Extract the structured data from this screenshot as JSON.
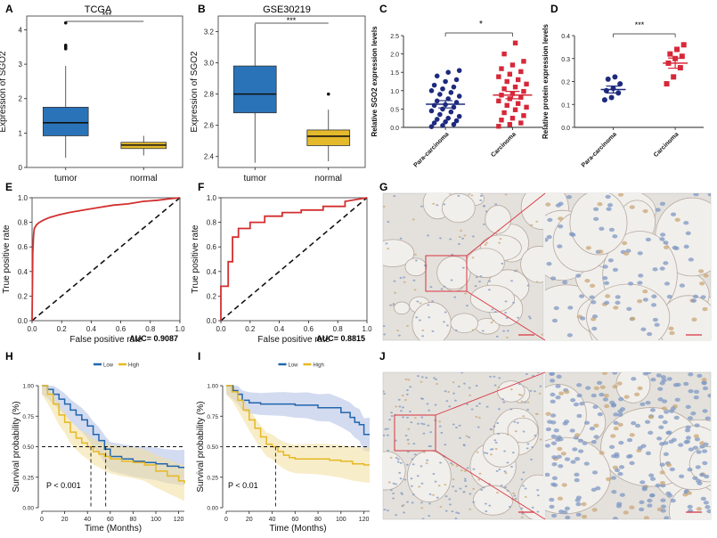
{
  "colors": {
    "tumor_box": "#2a73b9",
    "normal_box": "#e4b92c",
    "para_dot": "#1d2a7e",
    "carc_dot": "#d62839",
    "roc_line": "#d32f2f",
    "km_low": "#2166ac",
    "km_high": "#e6b822",
    "km_low_band": "#aebde4",
    "km_high_band": "#f2df9c",
    "tissue_bg": "#e4e1dc",
    "tissue_blue": "#7f98c4",
    "tissue_brown": "#c9a778",
    "zoom_box": "#d9333f"
  },
  "panels": {
    "A": {
      "letter": "A",
      "title": "TCGA",
      "sig": "***"
    },
    "B": {
      "letter": "B",
      "title": "GSE30219",
      "sig": "***"
    },
    "C": {
      "letter": "C",
      "sig": "*"
    },
    "D": {
      "letter": "D",
      "sig": "***"
    },
    "E": {
      "letter": "E",
      "auc": "AUC= 0.9087"
    },
    "F": {
      "letter": "F",
      "auc": "AUC= 0.8815"
    },
    "G": {
      "letter": "G"
    },
    "H": {
      "letter": "H",
      "pval": "P < 0.001"
    },
    "I": {
      "letter": "I",
      "pval": "P < 0.01"
    },
    "J": {
      "letter": "J"
    }
  },
  "chart_data": [
    {
      "panel": "A",
      "type": "box",
      "title": "TCGA",
      "ylabel": "Expression of SGO2",
      "ylim": [
        0,
        4.4
      ],
      "yticks": [
        "0",
        "1",
        "2",
        "3",
        "4"
      ],
      "categories": [
        "tumor",
        "normal"
      ],
      "boxes": [
        {
          "name": "tumor",
          "min": 0.28,
          "q1": 0.92,
          "median": 1.3,
          "q3": 1.75,
          "max": 2.95,
          "outliers": [
            3.45,
            3.5,
            3.55,
            4.2
          ]
        },
        {
          "name": "normal",
          "min": 0.35,
          "q1": 0.55,
          "median": 0.65,
          "q3": 0.73,
          "max": 0.92,
          "outliers": []
        }
      ]
    },
    {
      "panel": "B",
      "type": "box",
      "title": "GSE30219",
      "ylabel": "Expression of SGO2",
      "ylim": [
        2.33,
        3.3
      ],
      "yticks": [
        "2.4",
        "2.6",
        "2.8",
        "3.0",
        "3.2"
      ],
      "categories": [
        "tumor",
        "normal"
      ],
      "boxes": [
        {
          "name": "tumor",
          "min": 2.36,
          "q1": 2.68,
          "median": 2.8,
          "q3": 2.98,
          "max": 3.25,
          "outliers": []
        },
        {
          "name": "normal",
          "min": 2.37,
          "q1": 2.47,
          "median": 2.53,
          "q3": 2.57,
          "max": 2.7,
          "outliers": [
            2.8
          ]
        }
      ]
    },
    {
      "panel": "C",
      "type": "scatter",
      "ylabel": "Relative SGO2 expression levels",
      "ylim": [
        0,
        2.5
      ],
      "yticks": [
        "0.0",
        "0.5",
        "1.0",
        "1.5",
        "2.0",
        "2.5"
      ],
      "categories": [
        "Para-carcinoma",
        "Carcinoma"
      ],
      "series": [
        {
          "name": "Para-carcinoma",
          "mean": 0.63,
          "sem": 0.1,
          "values": [
            0.02,
            0.05,
            0.08,
            0.12,
            0.15,
            0.18,
            0.22,
            0.25,
            0.3,
            0.35,
            0.42,
            0.45,
            0.5,
            0.55,
            0.6,
            0.62,
            0.68,
            0.72,
            0.78,
            0.85,
            0.9,
            0.95,
            1.0,
            1.05,
            1.1,
            1.15,
            1.25,
            1.3,
            1.4,
            1.5,
            1.55
          ]
        },
        {
          "name": "Carcinoma",
          "mean": 0.88,
          "sem": 0.1,
          "values": [
            0.03,
            0.08,
            0.12,
            0.2,
            0.25,
            0.32,
            0.4,
            0.48,
            0.55,
            0.6,
            0.65,
            0.72,
            0.78,
            0.82,
            0.88,
            0.92,
            0.98,
            1.05,
            1.1,
            1.18,
            1.25,
            1.3,
            1.38,
            1.45,
            1.52,
            1.6,
            1.7,
            1.8,
            2.0,
            2.3
          ]
        }
      ]
    },
    {
      "panel": "D",
      "type": "scatter",
      "ylabel": "Relative protein expression levels",
      "ylim": [
        0,
        0.4
      ],
      "yticks": [
        "0.0",
        "0.1",
        "0.2",
        "0.3",
        "0.4"
      ],
      "categories": [
        "Para-carcinoma",
        "Carcinoma"
      ],
      "series": [
        {
          "name": "Para-carcinoma",
          "mean": 0.165,
          "sem": 0.015,
          "values": [
            0.12,
            0.13,
            0.15,
            0.16,
            0.17,
            0.19,
            0.21,
            0.22
          ]
        },
        {
          "name": "Carcinoma",
          "mean": 0.28,
          "sem": 0.022,
          "values": [
            0.19,
            0.22,
            0.26,
            0.28,
            0.3,
            0.31,
            0.32,
            0.34,
            0.36
          ]
        }
      ]
    },
    {
      "panel": "E",
      "type": "line",
      "auc": 0.9087,
      "xlabel": "False positive rate",
      "ylabel": "True positive rate",
      "xlim": [
        0,
        1
      ],
      "ylim": [
        0,
        1
      ],
      "xticks": [
        "0.0",
        "0.2",
        "0.4",
        "0.6",
        "0.8",
        "1.0"
      ],
      "yticks": [
        "0.0",
        "0.2",
        "0.4",
        "0.6",
        "0.8",
        "1.0"
      ],
      "x": [
        0,
        0.005,
        0.01,
        0.015,
        0.03,
        0.05,
        0.08,
        0.12,
        0.18,
        0.25,
        0.35,
        0.45,
        0.55,
        0.65,
        0.75,
        0.85,
        0.92,
        1.0
      ],
      "y": [
        0,
        0.55,
        0.7,
        0.75,
        0.78,
        0.8,
        0.82,
        0.84,
        0.86,
        0.88,
        0.9,
        0.92,
        0.94,
        0.95,
        0.97,
        0.98,
        0.99,
        1.0
      ]
    },
    {
      "panel": "F",
      "type": "line",
      "auc": 0.8815,
      "xlabel": "False positive rate",
      "ylabel": "True positive rate",
      "xlim": [
        0,
        1
      ],
      "ylim": [
        0,
        1
      ],
      "xticks": [
        "0.0",
        "0.2",
        "0.4",
        "0.6",
        "0.8",
        "1.0"
      ],
      "yticks": [
        "0.0",
        "0.2",
        "0.4",
        "0.6",
        "0.8",
        "1.0"
      ],
      "x": [
        0,
        0,
        0.05,
        0.05,
        0.08,
        0.08,
        0.12,
        0.12,
        0.2,
        0.2,
        0.3,
        0.3,
        0.42,
        0.42,
        0.55,
        0.55,
        0.7,
        0.7,
        0.85,
        0.85,
        1.0
      ],
      "y": [
        0,
        0.28,
        0.28,
        0.48,
        0.48,
        0.68,
        0.68,
        0.75,
        0.75,
        0.8,
        0.8,
        0.85,
        0.85,
        0.88,
        0.88,
        0.9,
        0.9,
        0.93,
        0.93,
        0.97,
        1.0
      ]
    },
    {
      "panel": "H",
      "type": "line",
      "pvalue": "P < 0.001",
      "xlabel": "Time (Months)",
      "ylabel": "Survival probability (%)",
      "xlim": [
        0,
        125
      ],
      "ylim": [
        0,
        1
      ],
      "xticks": [
        "0",
        "20",
        "40",
        "60",
        "80",
        "100",
        "120"
      ],
      "yticks": [
        "0.00",
        "0.25",
        "0.50",
        "0.75",
        "1.00"
      ],
      "legend": [
        "Low",
        "High"
      ],
      "medians": [
        43,
        56
      ],
      "series": [
        {
          "name": "Low",
          "x": [
            0,
            5,
            10,
            15,
            20,
            25,
            30,
            35,
            40,
            45,
            50,
            55,
            60,
            70,
            80,
            90,
            100,
            110,
            120,
            125
          ],
          "y": [
            1.0,
            0.97,
            0.93,
            0.89,
            0.85,
            0.8,
            0.76,
            0.72,
            0.67,
            0.6,
            0.55,
            0.48,
            0.42,
            0.4,
            0.38,
            0.37,
            0.36,
            0.34,
            0.33,
            0.33
          ]
        },
        {
          "name": "High",
          "x": [
            0,
            5,
            10,
            15,
            20,
            25,
            30,
            35,
            40,
            45,
            50,
            55,
            60,
            70,
            80,
            90,
            100,
            110,
            120,
            125
          ],
          "y": [
            1.0,
            0.93,
            0.85,
            0.76,
            0.7,
            0.62,
            0.57,
            0.53,
            0.5,
            0.46,
            0.44,
            0.42,
            0.4,
            0.38,
            0.37,
            0.35,
            0.3,
            0.26,
            0.22,
            0.2
          ]
        }
      ]
    },
    {
      "panel": "I",
      "type": "line",
      "pvalue": "P < 0.01",
      "xlabel": "Time (Months)",
      "ylabel": "Survival probability (%)",
      "xlim": [
        0,
        125
      ],
      "ylim": [
        0,
        1
      ],
      "xticks": [
        "0",
        "20",
        "40",
        "60",
        "80",
        "100",
        "120"
      ],
      "yticks": [
        "0.00",
        "0.25",
        "0.50",
        "0.75",
        "1.00"
      ],
      "legend": [
        "Low",
        "High"
      ],
      "medians": [
        43
      ],
      "series": [
        {
          "name": "Low",
          "x": [
            0,
            6,
            10,
            14,
            20,
            30,
            40,
            50,
            60,
            70,
            80,
            90,
            100,
            108,
            112,
            116,
            120,
            125
          ],
          "y": [
            1.0,
            0.96,
            0.93,
            0.88,
            0.86,
            0.85,
            0.85,
            0.85,
            0.84,
            0.84,
            0.82,
            0.82,
            0.78,
            0.74,
            0.7,
            0.68,
            0.6,
            0.6
          ]
        },
        {
          "name": "High",
          "x": [
            0,
            5,
            10,
            15,
            20,
            25,
            30,
            35,
            40,
            45,
            50,
            55,
            60,
            70,
            80,
            90,
            100,
            110,
            120,
            125
          ],
          "y": [
            1.0,
            0.95,
            0.88,
            0.8,
            0.72,
            0.65,
            0.58,
            0.52,
            0.5,
            0.46,
            0.43,
            0.41,
            0.4,
            0.4,
            0.4,
            0.39,
            0.38,
            0.36,
            0.35,
            0.35
          ]
        }
      ]
    }
  ]
}
